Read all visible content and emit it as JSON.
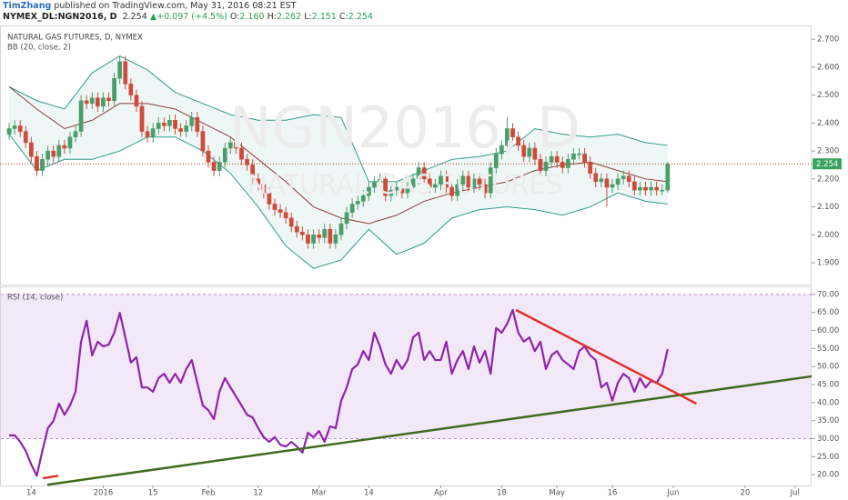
{
  "header": {
    "author": "TimZhang",
    "published": "published on TradingView.com, May 31, 2016 08:21 EST",
    "symbol": "NYMEX_DL:NGN2016, D",
    "last": "2.254",
    "arrow": "▲",
    "change": "+0.097 (+4.5%)",
    "fields": [
      {
        "key": "O:",
        "value": "2.160"
      },
      {
        "key": "H:",
        "value": "2.262"
      },
      {
        "key": "L:",
        "value": "2.151"
      },
      {
        "key": "C:",
        "value": "2.254"
      }
    ]
  },
  "chart_data": {
    "type": "candlestick",
    "title": "NATURAL GAS FUTURES, D, NYMEX",
    "watermark": "NGN2016, D",
    "watermark_sub": "NATURAL GAS FUTURES",
    "up_color": "#4a9e6b",
    "down_color": "#cf4a3a",
    "price_label": "2.254",
    "price_label_color": "#3aa35e",
    "last_line_color": "#c0392b",
    "categories": [
      null,
      null,
      null,
      null,
      "14",
      null,
      null,
      null,
      null,
      null,
      null,
      null,
      null,
      null,
      null,
      null,
      null,
      "2016",
      null,
      null,
      null,
      null,
      null,
      null,
      null,
      null,
      "15",
      null,
      null,
      null,
      null,
      null,
      null,
      null,
      null,
      null,
      "Feb",
      null,
      null,
      null,
      null,
      null,
      null,
      null,
      null,
      "12",
      null,
      null,
      null,
      null,
      null,
      null,
      null,
      null,
      null,
      null,
      "Mar",
      null,
      null,
      null,
      null,
      null,
      null,
      null,
      null,
      "14",
      null,
      null,
      null,
      null,
      null,
      null,
      null,
      null,
      null,
      null,
      null,
      null,
      "Apr",
      null,
      null,
      null,
      null,
      null,
      null,
      null,
      null,
      null,
      null,
      "18",
      null,
      null,
      null,
      null,
      null,
      null,
      null,
      null,
      null,
      "May",
      null,
      null,
      null,
      null,
      null,
      null,
      null,
      null,
      null,
      "16",
      null,
      null,
      null,
      null,
      null,
      null,
      null,
      null,
      null,
      null,
      "Jun",
      null,
      null,
      null,
      null,
      null,
      null,
      null,
      null,
      null,
      null,
      null,
      null,
      "20",
      null,
      null,
      null,
      null,
      null,
      null,
      null,
      null,
      "Jul",
      null,
      null,
      null
    ],
    "ohlc": [
      [
        2.36,
        2.4,
        2.34,
        2.38
      ],
      [
        2.38,
        2.41,
        2.36,
        2.39
      ],
      [
        2.39,
        2.41,
        2.35,
        2.37
      ],
      [
        2.37,
        2.39,
        2.31,
        2.33
      ],
      [
        2.33,
        2.35,
        2.26,
        2.28
      ],
      [
        2.28,
        2.3,
        2.21,
        2.23
      ],
      [
        2.23,
        2.29,
        2.21,
        2.27
      ],
      [
        2.27,
        2.32,
        2.25,
        2.3
      ],
      [
        2.3,
        2.32,
        2.26,
        2.28
      ],
      [
        2.28,
        2.34,
        2.26,
        2.32
      ],
      [
        2.32,
        2.34,
        2.29,
        2.31
      ],
      [
        2.31,
        2.37,
        2.29,
        2.35
      ],
      [
        2.35,
        2.39,
        2.33,
        2.37
      ],
      [
        2.37,
        2.5,
        2.35,
        2.48
      ],
      [
        2.48,
        2.5,
        2.45,
        2.47
      ],
      [
        2.47,
        2.51,
        2.45,
        2.49
      ],
      [
        2.49,
        2.51,
        2.44,
        2.46
      ],
      [
        2.46,
        2.51,
        2.44,
        2.49
      ],
      [
        2.49,
        2.51,
        2.46,
        2.48
      ],
      [
        2.48,
        2.58,
        2.46,
        2.56
      ],
      [
        2.56,
        2.64,
        2.54,
        2.62
      ],
      [
        2.62,
        2.64,
        2.52,
        2.54
      ],
      [
        2.54,
        2.56,
        2.48,
        2.5
      ],
      [
        2.5,
        2.52,
        2.44,
        2.46
      ],
      [
        2.46,
        2.48,
        2.35,
        2.37
      ],
      [
        2.37,
        2.39,
        2.33,
        2.35
      ],
      [
        2.35,
        2.4,
        2.33,
        2.38
      ],
      [
        2.38,
        2.42,
        2.36,
        2.4
      ],
      [
        2.4,
        2.42,
        2.37,
        2.39
      ],
      [
        2.39,
        2.43,
        2.37,
        2.41
      ],
      [
        2.41,
        2.43,
        2.36,
        2.38
      ],
      [
        2.38,
        2.4,
        2.35,
        2.37
      ],
      [
        2.37,
        2.41,
        2.35,
        2.39
      ],
      [
        2.39,
        2.44,
        2.37,
        2.42
      ],
      [
        2.42,
        2.44,
        2.35,
        2.37
      ],
      [
        2.37,
        2.39,
        2.28,
        2.3
      ],
      [
        2.3,
        2.32,
        2.24,
        2.26
      ],
      [
        2.26,
        2.28,
        2.21,
        2.23
      ],
      [
        2.23,
        2.28,
        2.21,
        2.26
      ],
      [
        2.26,
        2.33,
        2.24,
        2.31
      ],
      [
        2.31,
        2.35,
        2.29,
        2.33
      ],
      [
        2.33,
        2.35,
        2.29,
        2.31
      ],
      [
        2.31,
        2.33,
        2.25,
        2.27
      ],
      [
        2.27,
        2.29,
        2.23,
        2.25
      ],
      [
        2.25,
        2.27,
        2.18,
        2.2
      ],
      [
        2.2,
        2.22,
        2.16,
        2.18
      ],
      [
        2.18,
        2.2,
        2.13,
        2.15
      ],
      [
        2.15,
        2.17,
        2.09,
        2.11
      ],
      [
        2.11,
        2.13,
        2.07,
        2.09
      ],
      [
        2.09,
        2.11,
        2.06,
        2.08
      ],
      [
        2.08,
        2.1,
        2.04,
        2.06
      ],
      [
        2.06,
        2.08,
        2.01,
        2.03
      ],
      [
        2.03,
        2.05,
        1.99,
        2.01
      ],
      [
        2.01,
        2.03,
        1.98,
        2.0
      ],
      [
        2.0,
        2.02,
        1.95,
        1.97
      ],
      [
        1.97,
        2.02,
        1.95,
        2.0
      ],
      [
        2.0,
        2.02,
        1.97,
        1.99
      ],
      [
        1.99,
        2.04,
        1.97,
        2.02
      ],
      [
        2.02,
        2.04,
        1.95,
        1.97
      ],
      [
        1.97,
        2.02,
        1.95,
        2.0
      ],
      [
        2.0,
        2.06,
        1.98,
        2.04
      ],
      [
        2.04,
        2.1,
        2.02,
        2.08
      ],
      [
        2.08,
        2.13,
        2.06,
        2.11
      ],
      [
        2.11,
        2.14,
        2.09,
        2.12
      ],
      [
        2.12,
        2.16,
        2.1,
        2.14
      ],
      [
        2.14,
        2.19,
        2.12,
        2.17
      ],
      [
        2.17,
        2.21,
        2.15,
        2.19
      ],
      [
        2.19,
        2.22,
        2.17,
        2.2
      ],
      [
        2.2,
        2.22,
        2.12,
        2.14
      ],
      [
        2.14,
        2.18,
        2.12,
        2.16
      ],
      [
        2.16,
        2.19,
        2.14,
        2.17
      ],
      [
        2.17,
        2.19,
        2.13,
        2.15
      ],
      [
        2.15,
        2.19,
        2.13,
        2.17
      ],
      [
        2.17,
        2.22,
        2.15,
        2.2
      ],
      [
        2.2,
        2.26,
        2.18,
        2.24
      ],
      [
        2.24,
        2.26,
        2.18,
        2.2
      ],
      [
        2.2,
        2.22,
        2.15,
        2.17
      ],
      [
        2.17,
        2.2,
        2.15,
        2.18
      ],
      [
        2.18,
        2.23,
        2.16,
        2.21
      ],
      [
        2.21,
        2.23,
        2.15,
        2.17
      ],
      [
        2.17,
        2.19,
        2.12,
        2.14
      ],
      [
        2.14,
        2.2,
        2.12,
        2.18
      ],
      [
        2.18,
        2.23,
        2.16,
        2.21
      ],
      [
        2.21,
        2.23,
        2.15,
        2.17
      ],
      [
        2.17,
        2.22,
        2.15,
        2.2
      ],
      [
        2.2,
        2.22,
        2.16,
        2.18
      ],
      [
        2.18,
        2.2,
        2.13,
        2.15
      ],
      [
        2.15,
        2.26,
        2.13,
        2.24
      ],
      [
        2.24,
        2.31,
        2.22,
        2.29
      ],
      [
        2.29,
        2.34,
        2.27,
        2.32
      ],
      [
        2.32,
        2.42,
        2.3,
        2.38
      ],
      [
        2.38,
        2.4,
        2.33,
        2.35
      ],
      [
        2.35,
        2.37,
        2.3,
        2.32
      ],
      [
        2.32,
        2.34,
        2.26,
        2.28
      ],
      [
        2.28,
        2.33,
        2.26,
        2.31
      ],
      [
        2.31,
        2.33,
        2.25,
        2.27
      ],
      [
        2.27,
        2.29,
        2.21,
        2.23
      ],
      [
        2.23,
        2.28,
        2.21,
        2.26
      ],
      [
        2.26,
        2.3,
        2.24,
        2.28
      ],
      [
        2.28,
        2.3,
        2.24,
        2.26
      ],
      [
        2.26,
        2.28,
        2.22,
        2.24
      ],
      [
        2.24,
        2.29,
        2.22,
        2.27
      ],
      [
        2.27,
        2.31,
        2.25,
        2.29
      ],
      [
        2.29,
        2.31,
        2.27,
        2.29
      ],
      [
        2.29,
        2.31,
        2.24,
        2.26
      ],
      [
        2.26,
        2.28,
        2.2,
        2.22
      ],
      [
        2.22,
        2.24,
        2.17,
        2.19
      ],
      [
        2.19,
        2.22,
        2.17,
        2.2
      ],
      [
        2.2,
        2.22,
        2.1,
        2.17
      ],
      [
        2.17,
        2.2,
        2.15,
        2.18
      ],
      [
        2.18,
        2.22,
        2.16,
        2.2
      ],
      [
        2.2,
        2.23,
        2.18,
        2.21
      ],
      [
        2.21,
        2.23,
        2.17,
        2.19
      ],
      [
        2.19,
        2.21,
        2.14,
        2.16
      ],
      [
        2.16,
        2.19,
        2.14,
        2.17
      ],
      [
        2.17,
        2.19,
        2.14,
        2.16
      ],
      [
        2.16,
        2.19,
        2.14,
        2.17
      ],
      [
        2.17,
        2.19,
        2.14,
        2.16
      ],
      [
        2.16,
        2.18,
        2.14,
        2.16
      ],
      [
        2.16,
        2.262,
        2.151,
        2.254
      ],
      null,
      null,
      null,
      null,
      null,
      null,
      null,
      null,
      null,
      null,
      null,
      null,
      null,
      null,
      null,
      null,
      null,
      null,
      null,
      null,
      null,
      null,
      null,
      null,
      null,
      null
    ],
    "ylim": [
      1.822,
      2.746
    ],
    "yticks": [
      {
        "value": 1.9,
        "label": "1.900"
      },
      {
        "value": 2.0,
        "label": "2.000"
      },
      {
        "value": 2.1,
        "label": "2.100"
      },
      {
        "value": 2.2,
        "label": "2.200"
      },
      {
        "value": 2.3,
        "label": "2.300"
      },
      {
        "value": 2.4,
        "label": "2.400"
      },
      {
        "value": 2.5,
        "label": "2.500"
      },
      {
        "value": 2.6,
        "label": "2.600"
      },
      {
        "value": 2.7,
        "label": "2.700"
      }
    ],
    "bb": {
      "name": "BB (20, close, 2)",
      "band_color": "#2f9a8a",
      "basis_color": "#8e3b3b",
      "x": [
        0,
        5,
        10,
        15,
        20,
        25,
        30,
        35,
        40,
        45,
        50,
        55,
        60,
        65,
        70,
        75,
        80,
        85,
        90,
        95,
        100,
        105,
        110,
        115,
        119
      ],
      "upper": [
        2.53,
        2.48,
        2.45,
        2.58,
        2.64,
        2.59,
        2.51,
        2.47,
        2.43,
        2.41,
        2.41,
        2.43,
        2.42,
        2.19,
        2.19,
        2.23,
        2.27,
        2.28,
        2.3,
        2.38,
        2.36,
        2.35,
        2.36,
        2.33,
        2.32
      ],
      "basis": [
        2.53,
        2.45,
        2.38,
        2.41,
        2.47,
        2.47,
        2.45,
        2.4,
        2.35,
        2.27,
        2.19,
        2.1,
        2.06,
        2.04,
        2.07,
        2.12,
        2.15,
        2.17,
        2.19,
        2.23,
        2.25,
        2.26,
        2.23,
        2.2,
        2.19
      ],
      "lower": [
        2.36,
        2.23,
        2.27,
        2.27,
        2.3,
        2.35,
        2.35,
        2.3,
        2.22,
        2.1,
        1.96,
        1.88,
        1.91,
        2.02,
        1.93,
        1.97,
        2.06,
        2.09,
        2.1,
        2.09,
        2.07,
        2.1,
        2.15,
        2.12,
        2.11
      ]
    },
    "rsi": {
      "title": "RSI (14, close)",
      "color": "#8e24aa",
      "band": [
        30,
        70
      ],
      "band_color": "#e9d5f3",
      "ylim": [
        17,
        72
      ],
      "yticks": [
        {
          "value": 20,
          "label": "20.00"
        },
        {
          "value": 25,
          "label": "25.00"
        },
        {
          "value": 30,
          "label": "30.00"
        },
        {
          "value": 35,
          "label": "35.00"
        },
        {
          "value": 40,
          "label": "40.00"
        },
        {
          "value": 45,
          "label": "45.00"
        },
        {
          "value": 50,
          "label": "50.00"
        },
        {
          "value": 55,
          "label": "55.00"
        },
        {
          "value": 60,
          "label": "60.00"
        },
        {
          "value": 65,
          "label": "65.00"
        },
        {
          "value": 70,
          "label": "70.00"
        }
      ],
      "values": [
        30.9,
        30.9,
        29.1,
        26.6,
        22.8,
        19.7,
        26.6,
        32.9,
        34.9,
        39.7,
        36.6,
        39.2,
        43.0,
        56.9,
        62.7,
        53.1,
        56.9,
        55.6,
        56.1,
        59.4,
        64.9,
        58.1,
        51.1,
        52.6,
        44.2,
        44.2,
        43.0,
        46.8,
        48.0,
        45.5,
        48.0,
        45.5,
        49.3,
        51.8,
        45.5,
        39.2,
        37.9,
        35.4,
        43.0,
        46.8,
        44.2,
        41.7,
        39.2,
        36.6,
        35.9,
        32.9,
        30.4,
        29.1,
        30.4,
        28.3,
        27.8,
        29.1,
        27.8,
        26.1,
        31.6,
        30.4,
        32.1,
        29.1,
        33.4,
        32.9,
        40.5,
        44.2,
        49.3,
        50.6,
        54.3,
        51.8,
        59.4,
        55.6,
        50.6,
        48.0,
        51.8,
        49.3,
        51.8,
        58.1,
        59.4,
        51.8,
        54.3,
        51.8,
        51.8,
        56.9,
        48.0,
        51.8,
        54.3,
        49.3,
        55.6,
        51.1,
        54.3,
        48.0,
        60.7,
        59.4,
        61.9,
        65.7,
        59.4,
        56.9,
        58.1,
        54.3,
        56.9,
        49.3,
        53.1,
        54.3,
        51.8,
        50.6,
        49.3,
        54.3,
        55.6,
        53.1,
        51.8,
        44.2,
        45.5,
        40.5,
        45.5,
        48.0,
        46.8,
        43.0,
        46.8,
        44.2,
        46.0,
        45.5,
        48.0,
        54.8,
        null,
        null,
        null,
        null,
        null,
        null,
        null,
        null,
        null,
        null,
        null,
        null,
        null,
        null,
        null,
        null,
        null,
        null,
        null,
        null,
        null,
        null,
        null,
        null,
        null,
        null
      ],
      "trendlines": [
        {
          "color": "#e0302a",
          "points": [
            [
              6.1,
              19.0
            ],
            [
              8.9,
              19.7
            ]
          ]
        },
        {
          "color": "#3f6b1f",
          "points": [
            [
              6.9,
              17.2
            ],
            [
              145.1,
              47.3
            ]
          ]
        },
        {
          "color": "#e0302a",
          "points": [
            [
              91.6,
              65.7
            ],
            [
              124.2,
              39.7
            ]
          ]
        }
      ]
    }
  }
}
